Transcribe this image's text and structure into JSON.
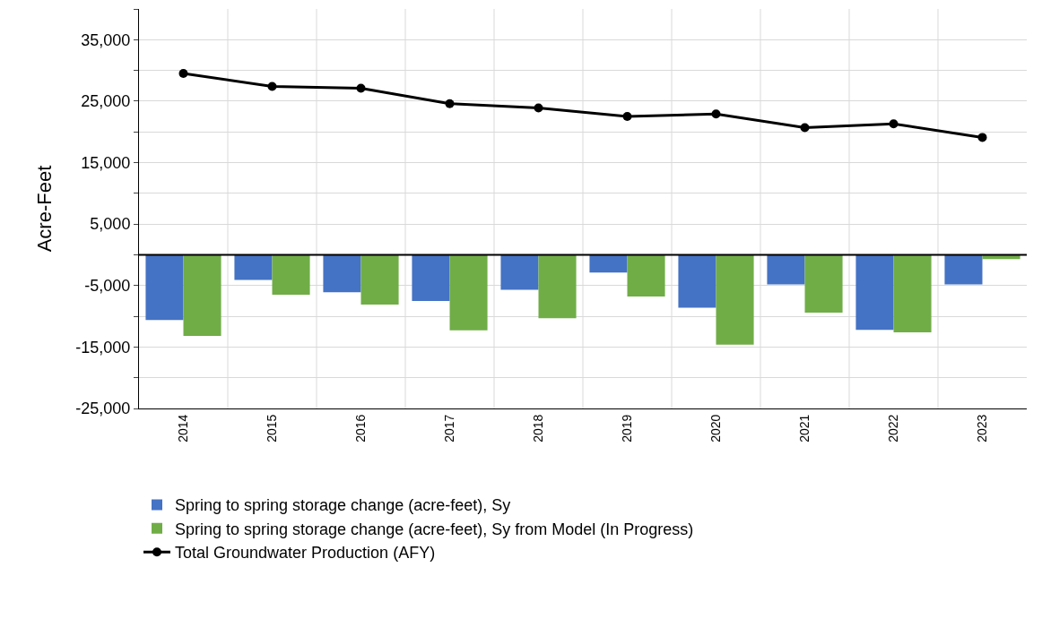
{
  "chart_data": {
    "type": "bar",
    "ylabel": "Acre-Feet",
    "categories": [
      "2014",
      "2015",
      "2016",
      "2017",
      "2018",
      "2019",
      "2020",
      "2021",
      "2022",
      "2023"
    ],
    "series": [
      {
        "name": "Spring to spring storage change (acre-feet), Sy",
        "color": "#4472c4",
        "values": [
          -10600,
          -4100,
          -6100,
          -7500,
          -5700,
          -2900,
          -8600,
          -4800,
          -12200,
          -4800
        ]
      },
      {
        "name": "Spring to spring storage change (acre-feet), Sy from Model (In Progress)",
        "color": "#70ad47",
        "values": [
          -13200,
          -6500,
          -8100,
          -12300,
          -10300,
          -6800,
          -14600,
          -9400,
          -12600,
          -700
        ]
      },
      {
        "name": "Total Groundwater Production (AFY)",
        "type": "line",
        "color": "#000000",
        "marker": "circle",
        "values": [
          29500,
          27400,
          27100,
          24600,
          23900,
          22500,
          22900,
          20700,
          21300,
          19100
        ]
      }
    ],
    "ylim": [
      -25000,
      40000
    ],
    "yticks": [
      {
        "value": -25000,
        "label": "-25,000"
      },
      {
        "value": -20000,
        "label": null
      },
      {
        "value": -15000,
        "label": "-15,000"
      },
      {
        "value": -10000,
        "label": null
      },
      {
        "value": -5000,
        "label": "-5,000"
      },
      {
        "value": 0,
        "label": null
      },
      {
        "value": 5000,
        "label": "5,000"
      },
      {
        "value": 10000,
        "label": null
      },
      {
        "value": 15000,
        "label": "15,000"
      },
      {
        "value": 20000,
        "label": null
      },
      {
        "value": 25000,
        "label": "25,000"
      },
      {
        "value": 30000,
        "label": null
      },
      {
        "value": 35000,
        "label": "35,000"
      },
      {
        "value": 40000,
        "label": null
      }
    ],
    "ref_lines": [
      {
        "axis": "y",
        "value": 0,
        "color": "#000000"
      }
    ],
    "grid": true,
    "legend": "bottom"
  }
}
